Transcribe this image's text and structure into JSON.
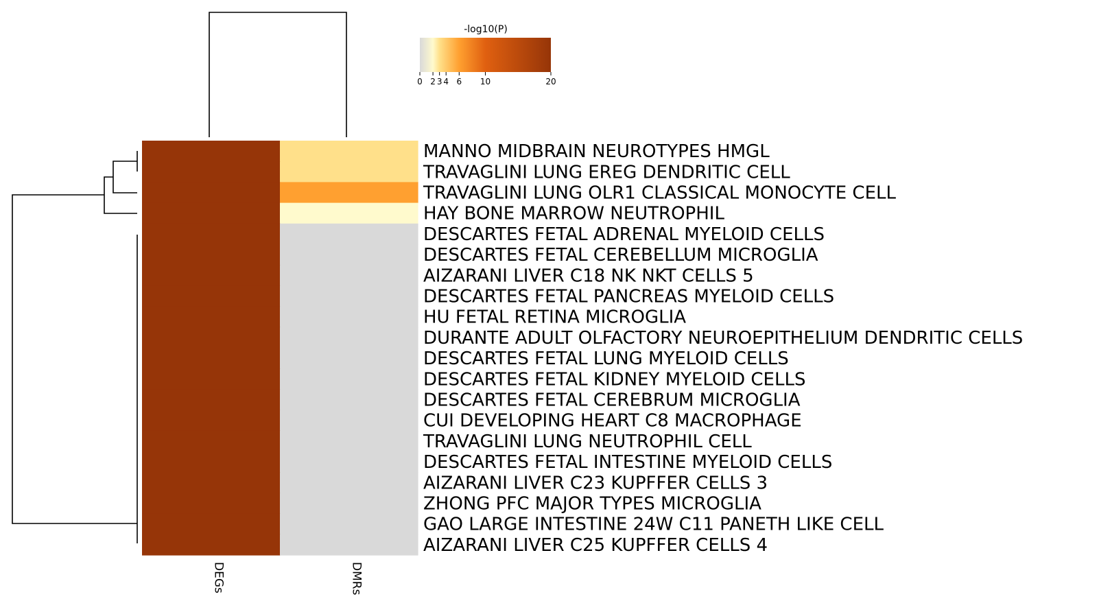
{
  "chart_data": {
    "type": "heatmap",
    "colorbar": {
      "title": "-log10(P)",
      "range": [
        0,
        20
      ],
      "ticks": [
        0,
        2,
        3,
        4,
        6,
        10,
        20
      ],
      "tick_labels": [
        "0",
        "2",
        "3",
        "4",
        "6",
        "10",
        "20"
      ],
      "stops": [
        {
          "value": 0,
          "color": "#d9d9d9"
        },
        {
          "value": 2,
          "color": "#fffacd"
        },
        {
          "value": 3,
          "color": "#ffe08a"
        },
        {
          "value": 6,
          "color": "#ffa030"
        },
        {
          "value": 10,
          "color": "#e06010"
        },
        {
          "value": 20,
          "color": "#963508"
        }
      ]
    },
    "columns": [
      "DEGs",
      "DMRs"
    ],
    "rows": [
      "MANNO MIDBRAIN NEUROTYPES HMGL",
      "TRAVAGLINI LUNG EREG DENDRITIC CELL",
      "TRAVAGLINI LUNG OLR1 CLASSICAL MONOCYTE CELL",
      "HAY BONE MARROW NEUTROPHIL",
      "DESCARTES FETAL ADRENAL MYELOID CELLS",
      "DESCARTES FETAL CEREBELLUM MICROGLIA",
      "AIZARANI LIVER C18 NK NKT CELLS 5",
      "DESCARTES FETAL PANCREAS MYELOID CELLS",
      "HU FETAL RETINA MICROGLIA",
      "DURANTE ADULT OLFACTORY NEUROEPITHELIUM DENDRITIC CELLS",
      "DESCARTES FETAL LUNG MYELOID CELLS",
      "DESCARTES FETAL KIDNEY MYELOID CELLS",
      "DESCARTES FETAL CEREBRUM MICROGLIA",
      "CUI DEVELOPING HEART C8 MACROPHAGE",
      "TRAVAGLINI LUNG NEUTROPHIL CELL",
      "DESCARTES FETAL INTESTINE MYELOID CELLS",
      "AIZARANI LIVER C23 KUPFFER CELLS 3",
      "ZHONG PFC MAJOR TYPES MICROGLIA",
      "GAO LARGE INTESTINE 24W C11 PANETH LIKE CELL",
      "AIZARANI LIVER C25 KUPFFER CELLS 4"
    ],
    "values": [
      [
        20,
        3
      ],
      [
        20,
        3
      ],
      [
        20,
        6
      ],
      [
        20,
        2
      ],
      [
        20,
        0
      ],
      [
        20,
        0
      ],
      [
        20,
        0
      ],
      [
        20,
        0
      ],
      [
        20,
        0
      ],
      [
        20,
        0
      ],
      [
        20,
        0
      ],
      [
        20,
        0
      ],
      [
        20,
        0
      ],
      [
        20,
        0
      ],
      [
        20,
        0
      ],
      [
        20,
        0
      ],
      [
        20,
        0
      ],
      [
        20,
        0
      ],
      [
        20,
        0
      ],
      [
        20,
        0
      ]
    ],
    "row_dendrogram": true,
    "column_dendrogram": true
  }
}
